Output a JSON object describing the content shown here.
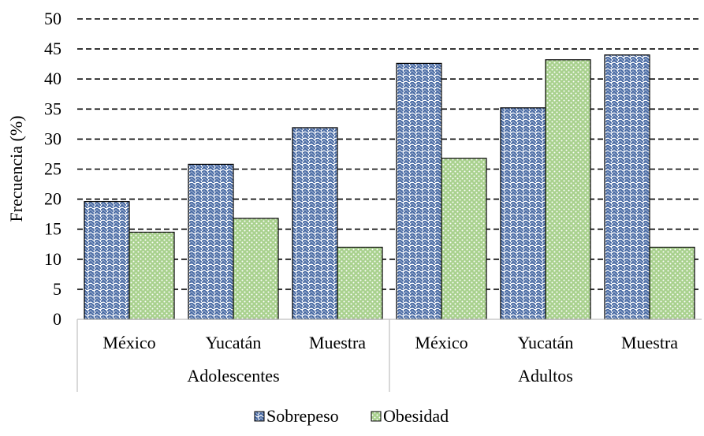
{
  "chart_data": {
    "type": "bar",
    "ylabel": "Frecuencia (%)",
    "xlabel": "",
    "title": "",
    "ylim": [
      0,
      50
    ],
    "yticks": [
      0,
      5,
      10,
      15,
      20,
      25,
      30,
      35,
      40,
      45,
      50
    ],
    "grid": true,
    "legend_position": "bottom",
    "groups": [
      {
        "label": "Adolescentes",
        "categories": [
          "México",
          "Yucatán",
          "Muestra"
        ]
      },
      {
        "label": "Adultos",
        "categories": [
          "México",
          "Yucatán",
          "Muestra"
        ]
      }
    ],
    "categories": [
      "México",
      "Yucatán",
      "Muestra",
      "México",
      "Yucatán",
      "Muestra"
    ],
    "series": [
      {
        "name": "Sobrepeso",
        "values": [
          19.6,
          25.8,
          31.9,
          42.6,
          35.2,
          44.0
        ],
        "color": "#2f5597"
      },
      {
        "name": "Obesidad",
        "values": [
          14.5,
          16.8,
          12.0,
          26.8,
          43.2,
          12.0
        ],
        "color": "#70ad47"
      }
    ]
  }
}
